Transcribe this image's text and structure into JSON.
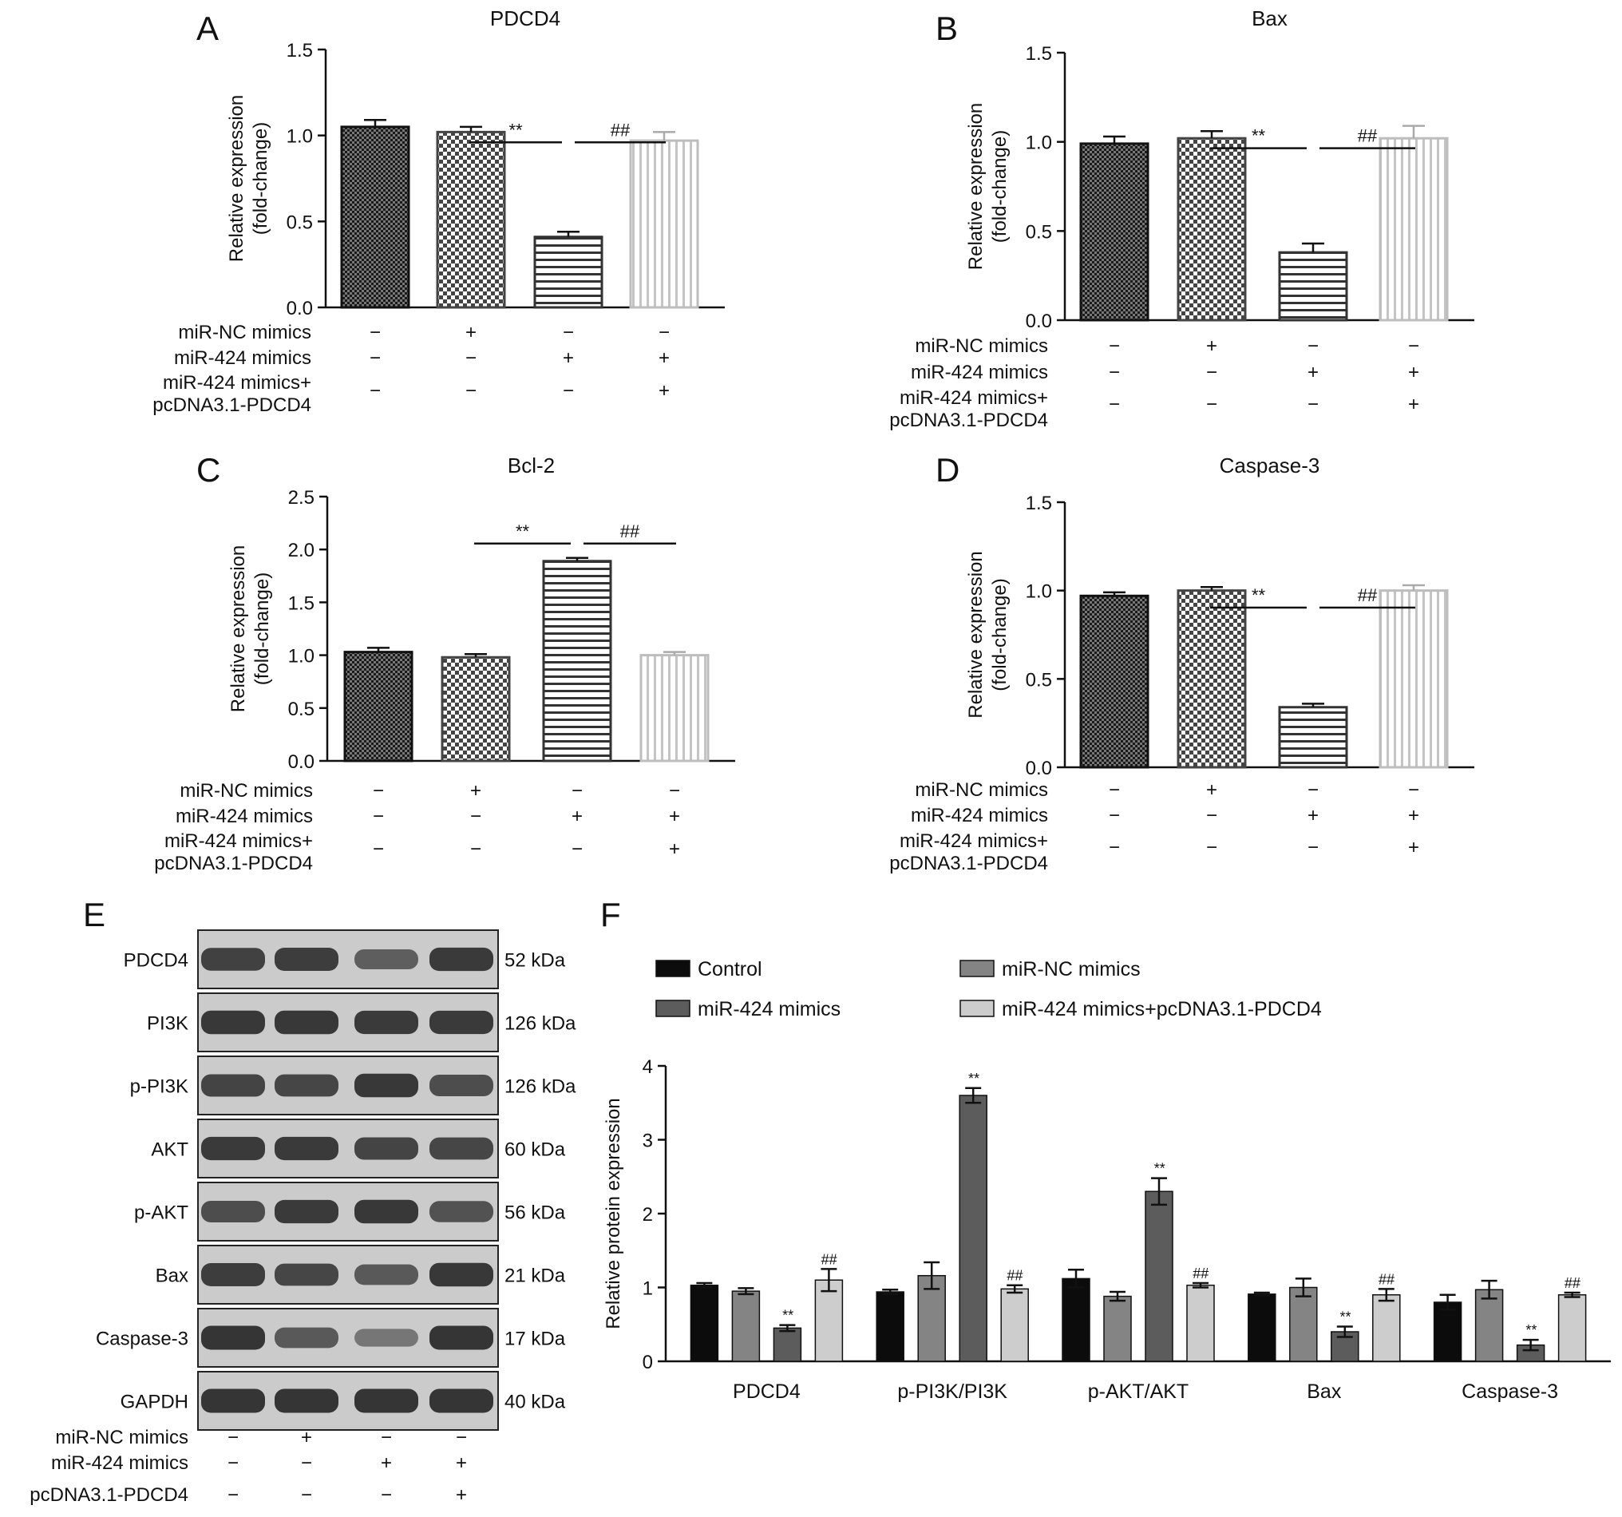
{
  "chart_data": [
    {
      "panel": "A",
      "type": "bar",
      "title": "PDCD4",
      "ylabel": "Relative expression",
      "ylabel2": "(fold-change)",
      "ylim": [
        0,
        1.5
      ],
      "yticks": [
        "0.0",
        "0.5",
        "1.0",
        "1.5"
      ],
      "values": [
        1.05,
        1.02,
        0.41,
        0.97
      ],
      "errors": [
        0.04,
        0.03,
        0.03,
        0.05
      ],
      "conditions": [
        {
          "label": "miR-NC mimics",
          "signs": [
            "−",
            "+",
            "−",
            "−"
          ]
        },
        {
          "label": "miR-424 mimics",
          "signs": [
            "−",
            "−",
            "+",
            "+"
          ]
        },
        {
          "label": "miR-424 mimics+",
          "label2": "pcDNA3.1-PDCD4",
          "signs": [
            "−",
            "−",
            "−",
            "+"
          ]
        }
      ],
      "significance": [
        {
          "label": "**"
        },
        {
          "label": "##"
        }
      ]
    },
    {
      "panel": "B",
      "type": "bar",
      "title": "Bax",
      "ylabel": "Relative expression",
      "ylabel2": "(fold-change)",
      "ylim": [
        0,
        1.5
      ],
      "yticks": [
        "0.0",
        "0.5",
        "1.0",
        "1.5"
      ],
      "values": [
        0.99,
        1.02,
        0.38,
        1.02
      ],
      "errors": [
        0.04,
        0.04,
        0.05,
        0.07
      ],
      "conditions": [
        {
          "label": "miR-NC mimics",
          "signs": [
            "−",
            "+",
            "−",
            "−"
          ]
        },
        {
          "label": "miR-424 mimics",
          "signs": [
            "−",
            "−",
            "+",
            "+"
          ]
        },
        {
          "label": "miR-424 mimics+",
          "label2": "pcDNA3.1-PDCD4",
          "signs": [
            "−",
            "−",
            "−",
            "+"
          ]
        }
      ],
      "significance": [
        {
          "label": "**"
        },
        {
          "label": "##"
        }
      ]
    },
    {
      "panel": "C",
      "type": "bar",
      "title": "Bcl-2",
      "ylabel": "Relative expression",
      "ylabel2": "(fold-change)",
      "ylim": [
        0,
        2.5
      ],
      "yticks": [
        "0.0",
        "0.5",
        "1.0",
        "1.5",
        "2.0",
        "2.5"
      ],
      "values": [
        1.03,
        0.98,
        1.89,
        1.0
      ],
      "errors": [
        0.04,
        0.03,
        0.03,
        0.03
      ],
      "conditions": [
        {
          "label": "miR-NC mimics",
          "signs": [
            "−",
            "+",
            "−",
            "−"
          ]
        },
        {
          "label": "miR-424 mimics",
          "signs": [
            "−",
            "−",
            "+",
            "+"
          ]
        },
        {
          "label": "miR-424 mimics+",
          "label2": "pcDNA3.1-PDCD4",
          "signs": [
            "−",
            "−",
            "−",
            "+"
          ]
        }
      ],
      "significance": [
        {
          "label": "**"
        },
        {
          "label": "##"
        }
      ]
    },
    {
      "panel": "D",
      "type": "bar",
      "title": "Caspase-3",
      "ylabel": "Relative expression",
      "ylabel2": "(fold-change)",
      "ylim": [
        0,
        1.5
      ],
      "yticks": [
        "0.0",
        "0.5",
        "1.0",
        "1.5"
      ],
      "values": [
        0.97,
        1.0,
        0.34,
        1.0
      ],
      "errors": [
        0.02,
        0.02,
        0.02,
        0.03
      ],
      "conditions": [
        {
          "label": "miR-NC mimics",
          "signs": [
            "−",
            "+",
            "−",
            "−"
          ]
        },
        {
          "label": "miR-424 mimics",
          "signs": [
            "−",
            "−",
            "+",
            "+"
          ]
        },
        {
          "label": "miR-424 mimics+",
          "label2": "pcDNA3.1-PDCD4",
          "signs": [
            "−",
            "−",
            "−",
            "+"
          ]
        }
      ],
      "significance": [
        {
          "label": "**"
        },
        {
          "label": "##"
        }
      ]
    },
    {
      "panel": "F",
      "type": "bar",
      "ylabel": "Relative protein expression",
      "ylim": [
        0,
        4
      ],
      "yticks": [
        "0",
        "1",
        "2",
        "3",
        "4"
      ],
      "categories": [
        "PDCD4",
        "p-PI3K/PI3K",
        "p-AKT/AKT",
        "Bax",
        "Caspase-3"
      ],
      "legend": "top",
      "series": [
        {
          "name": "Control",
          "color": "#0c0c0c",
          "values": [
            1.03,
            0.94,
            1.12,
            0.91,
            0.8
          ],
          "errors": [
            0.03,
            0.03,
            0.12,
            0.02,
            0.1
          ],
          "sig": [
            "",
            "",
            "",
            "",
            ""
          ]
        },
        {
          "name": "miR-NC mimics",
          "color": "#848484",
          "values": [
            0.95,
            1.16,
            0.88,
            1.0,
            0.97
          ],
          "errors": [
            0.04,
            0.18,
            0.06,
            0.12,
            0.12
          ],
          "sig": [
            "",
            "",
            "",
            "",
            ""
          ]
        },
        {
          "name": "miR-424 mimics",
          "color": "#5c5c5c",
          "values": [
            0.45,
            3.6,
            2.3,
            0.4,
            0.22
          ],
          "errors": [
            0.04,
            0.1,
            0.18,
            0.07,
            0.07
          ],
          "sig": [
            "**",
            "**",
            "**",
            "**",
            "**"
          ]
        },
        {
          "name": "miR-424 mimics+pcDNA3.1-PDCD4",
          "color": "#cdcdcd",
          "values": [
            1.1,
            0.98,
            1.03,
            0.9,
            0.9
          ],
          "errors": [
            0.15,
            0.05,
            0.03,
            0.08,
            0.03
          ],
          "sig": [
            "##",
            "##",
            "##",
            "##",
            "##"
          ]
        }
      ]
    }
  ],
  "western_blot": {
    "panel": "E",
    "rows": [
      {
        "protein": "PDCD4",
        "size": "52 kDa",
        "bands": [
          0.75,
          0.78,
          0.5,
          0.8
        ]
      },
      {
        "protein": "PI3K",
        "size": "126 kDa",
        "bands": [
          0.82,
          0.82,
          0.8,
          0.8
        ]
      },
      {
        "protein": "p-PI3K",
        "size": "126 kDa",
        "bands": [
          0.72,
          0.7,
          0.82,
          0.65
        ]
      },
      {
        "protein": "AKT",
        "size": "60 kDa",
        "bands": [
          0.8,
          0.8,
          0.72,
          0.7
        ]
      },
      {
        "protein": "p-AKT",
        "size": "56 kDa",
        "bands": [
          0.65,
          0.8,
          0.82,
          0.6
        ]
      },
      {
        "protein": "Bax",
        "size": "21 kDa",
        "bands": [
          0.78,
          0.7,
          0.55,
          0.82
        ]
      },
      {
        "protein": "Caspase-3",
        "size": "17 kDa",
        "bands": [
          0.85,
          0.55,
          0.3,
          0.85
        ]
      },
      {
        "protein": "GAPDH",
        "size": "40 kDa",
        "bands": [
          0.85,
          0.85,
          0.85,
          0.85
        ]
      }
    ],
    "conditions": [
      {
        "label": "miR-NC mimics",
        "signs": [
          "−",
          "+",
          "−",
          "−"
        ]
      },
      {
        "label": "miR-424 mimics",
        "signs": [
          "−",
          "−",
          "+",
          "+"
        ]
      },
      {
        "label": "pcDNA3.1-PDCD4",
        "signs": [
          "−",
          "−",
          "−",
          "+"
        ]
      }
    ]
  }
}
